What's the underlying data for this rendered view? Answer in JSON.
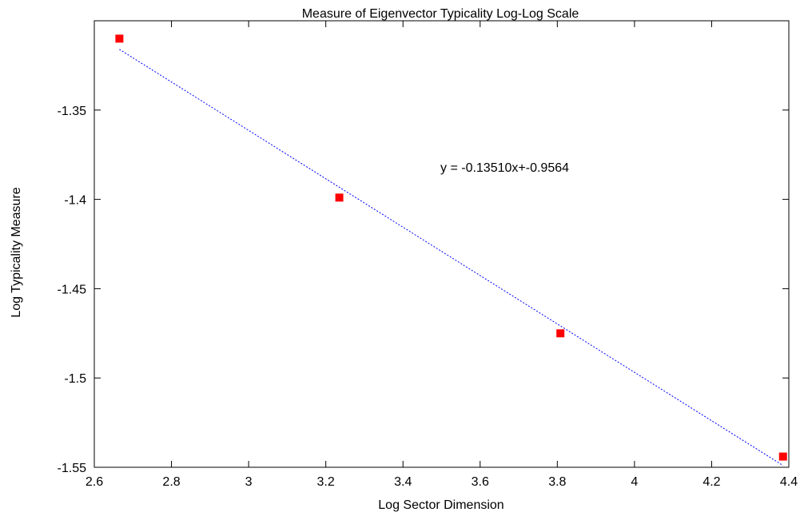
{
  "chart_data": {
    "type": "scatter",
    "title": "Measure of Eigenvector Typicality Log-Log Scale",
    "xlabel": "Log Sector Dimension",
    "ylabel": "Log Typicality Measure",
    "xlim": [
      2.6,
      4.4
    ],
    "ylim": [
      -1.55,
      -1.3
    ],
    "x_ticks": [
      2.6,
      2.8,
      3,
      3.2,
      3.4,
      3.6,
      3.8,
      4,
      4.2,
      4.4
    ],
    "x_tick_labels": [
      "2.6",
      "2.8",
      "3",
      "3.2",
      "3.4",
      "3.6",
      "3.8",
      "4",
      "4.2",
      "4.4"
    ],
    "y_ticks": [
      -1.35,
      -1.4,
      -1.45,
      -1.5,
      -1.55
    ],
    "y_tick_labels": [
      "-1.35",
      "-1.4",
      "-1.45",
      "-1.5",
      "-1.55"
    ],
    "grid": false,
    "series": [
      {
        "kind": "points",
        "color": "#ff0000",
        "marker": "square",
        "x": [
          2.665,
          3.235,
          3.808,
          4.385
        ],
        "y": [
          -1.31,
          -1.399,
          -1.475,
          -1.544
        ]
      },
      {
        "kind": "fit-line",
        "color": "#0000ff",
        "style": "dotted",
        "x": [
          2.665,
          4.385
        ],
        "y": [
          -1.316,
          -1.549
        ]
      }
    ],
    "annotation": "y = -0.13510x+-0.9564"
  }
}
